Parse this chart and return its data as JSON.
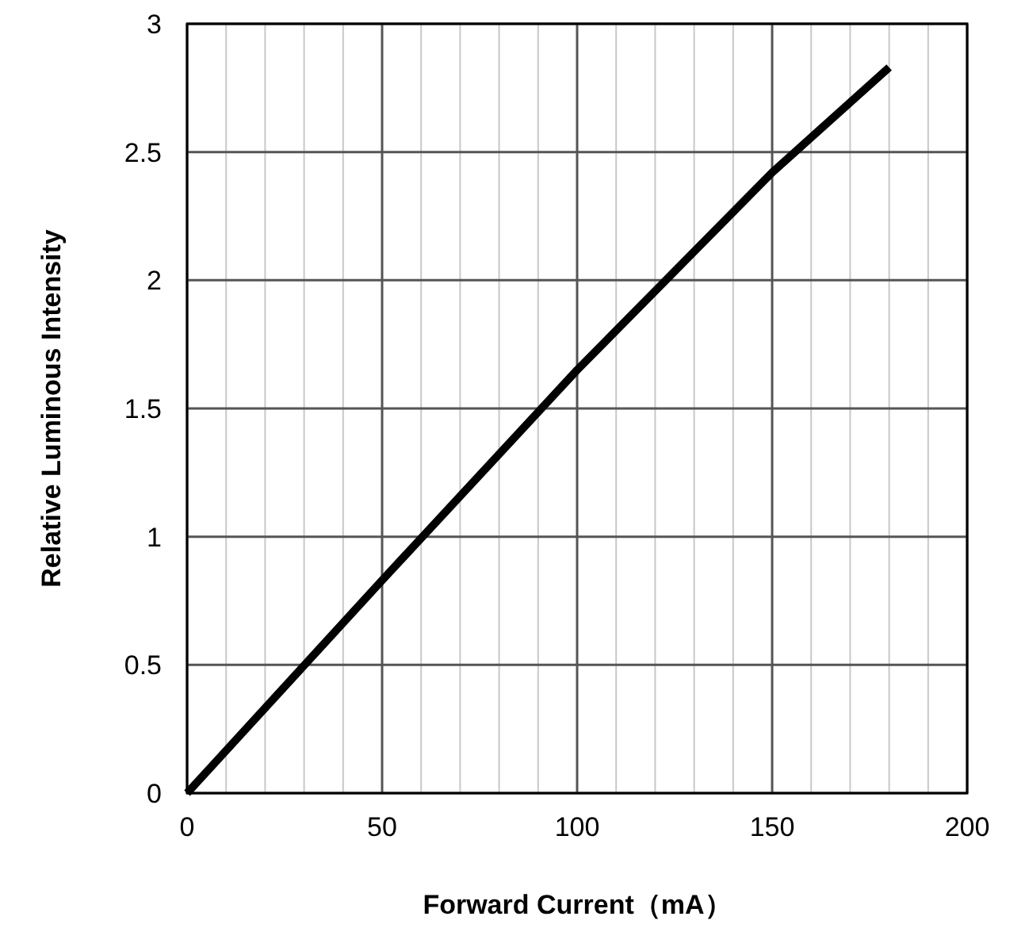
{
  "chart_data": {
    "type": "line",
    "xlabel": "Forward Current（mA）",
    "ylabel": "Relative Luminous Intensity",
    "x": [
      0,
      50,
      100,
      150,
      180
    ],
    "series": [
      {
        "color": "#000000",
        "values": [
          0,
          0.83,
          1.65,
          2.42,
          2.83
        ]
      }
    ],
    "xlim": [
      0,
      200
    ],
    "ylim": [
      0,
      3
    ],
    "xticks": [
      0,
      {
        "value": 10,
        "label": null
      },
      {
        "value": 20,
        "label": null
      },
      {
        "value": 30,
        "label": null
      },
      {
        "value": 40,
        "label": null
      },
      50,
      {
        "value": 60,
        "label": null
      },
      {
        "value": 70,
        "label": null
      },
      {
        "value": 80,
        "label": null
      },
      {
        "value": 90,
        "label": null
      },
      100,
      {
        "value": 110,
        "label": null
      },
      {
        "value": 120,
        "label": null
      },
      {
        "value": 130,
        "label": null
      },
      {
        "value": 140,
        "label": null
      },
      150,
      {
        "value": 160,
        "label": null
      },
      {
        "value": 170,
        "label": null
      },
      {
        "value": 180,
        "label": null
      },
      {
        "value": 190,
        "label": null
      },
      200
    ],
    "yticks": [
      0,
      0.5,
      1,
      1.5,
      2,
      2.5,
      3
    ],
    "grid": true,
    "marker": "none",
    "line_style": "solid"
  }
}
